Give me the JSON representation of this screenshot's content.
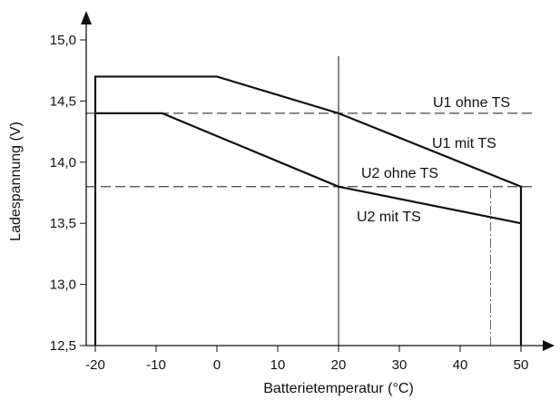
{
  "chart_data": {
    "type": "line",
    "title": "",
    "xlabel": "Batterietemperatur (°C)",
    "ylabel": "Ladespannung (V)",
    "xlim": [
      -25,
      55
    ],
    "ylim": [
      12.5,
      15.5
    ],
    "grid": false,
    "x_ticks": [
      -20,
      -10,
      0,
      10,
      20,
      30,
      40,
      50
    ],
    "x_tick_labels": [
      "-20",
      "-10",
      "0",
      "10",
      "20",
      "30",
      "40",
      "50"
    ],
    "y_ticks": [
      12.5,
      13.0,
      13.5,
      14.0,
      14.5,
      15.0
    ],
    "y_tick_labels": [
      "12,5",
      "13,0",
      "13,5",
      "14,0",
      "14,5",
      "15,0"
    ],
    "series": [
      {
        "name": "U1 ohne TS",
        "style": "dashed",
        "x": [
          -20,
          50
        ],
        "y": [
          14.4,
          14.4
        ]
      },
      {
        "name": "U1 mit TS",
        "style": "solid",
        "x": [
          -20,
          -20,
          0,
          20,
          50,
          50
        ],
        "y": [
          12.5,
          14.7,
          14.7,
          14.4,
          13.8,
          12.5
        ]
      },
      {
        "name": "U2 ohne TS",
        "style": "dashed",
        "x": [
          -20,
          50
        ],
        "y": [
          13.8,
          13.8
        ]
      },
      {
        "name": "U2 mit TS",
        "style": "solid",
        "x": [
          -20,
          -9,
          20,
          50
        ],
        "y": [
          14.4,
          14.4,
          13.8,
          13.5
        ]
      }
    ],
    "reference_lines": [
      {
        "orientation": "vertical",
        "x": 20,
        "style": "solid"
      },
      {
        "orientation": "vertical",
        "x": 45,
        "style": "dashdot",
        "y_from": 12.5,
        "y_to": 13.8
      }
    ],
    "colors": {
      "line": "#111111",
      "dashed": "#444444"
    }
  }
}
